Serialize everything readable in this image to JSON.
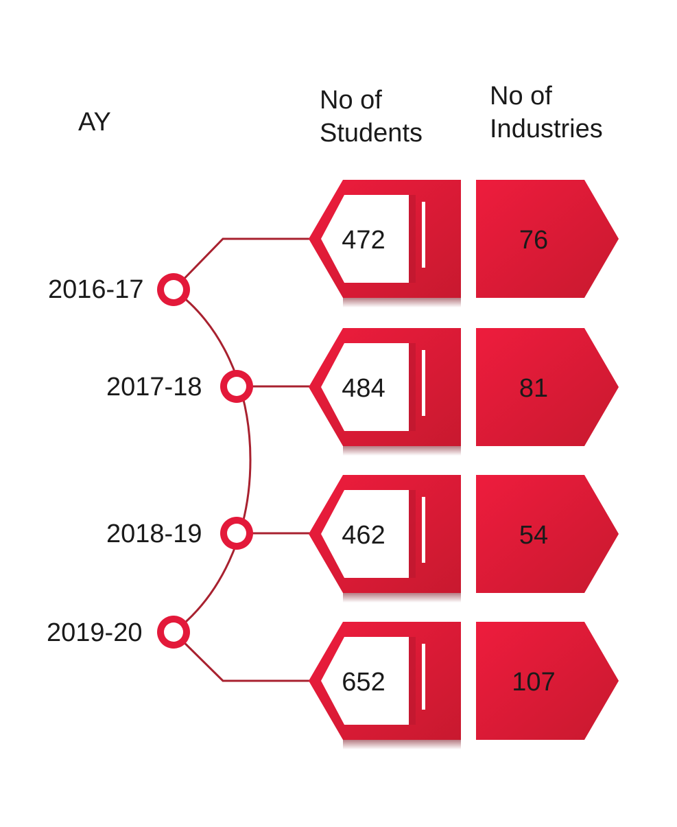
{
  "headers": {
    "year": "AY",
    "students_line1": "No of",
    "students_line2": "Students",
    "industries_line1": "No of",
    "industries_line2": "Industries"
  },
  "rows": [
    {
      "year": "2016-17",
      "students": "472",
      "industries": "76"
    },
    {
      "year": "2017-18",
      "students": "484",
      "industries": "81"
    },
    {
      "year": "2018-19",
      "students": "462",
      "industries": "54"
    },
    {
      "year": "2019-20",
      "students": "652",
      "industries": "107"
    }
  ],
  "colors": {
    "accent": "#e3193a",
    "accent_dark": "#b5162e",
    "line": "#a8212f"
  }
}
